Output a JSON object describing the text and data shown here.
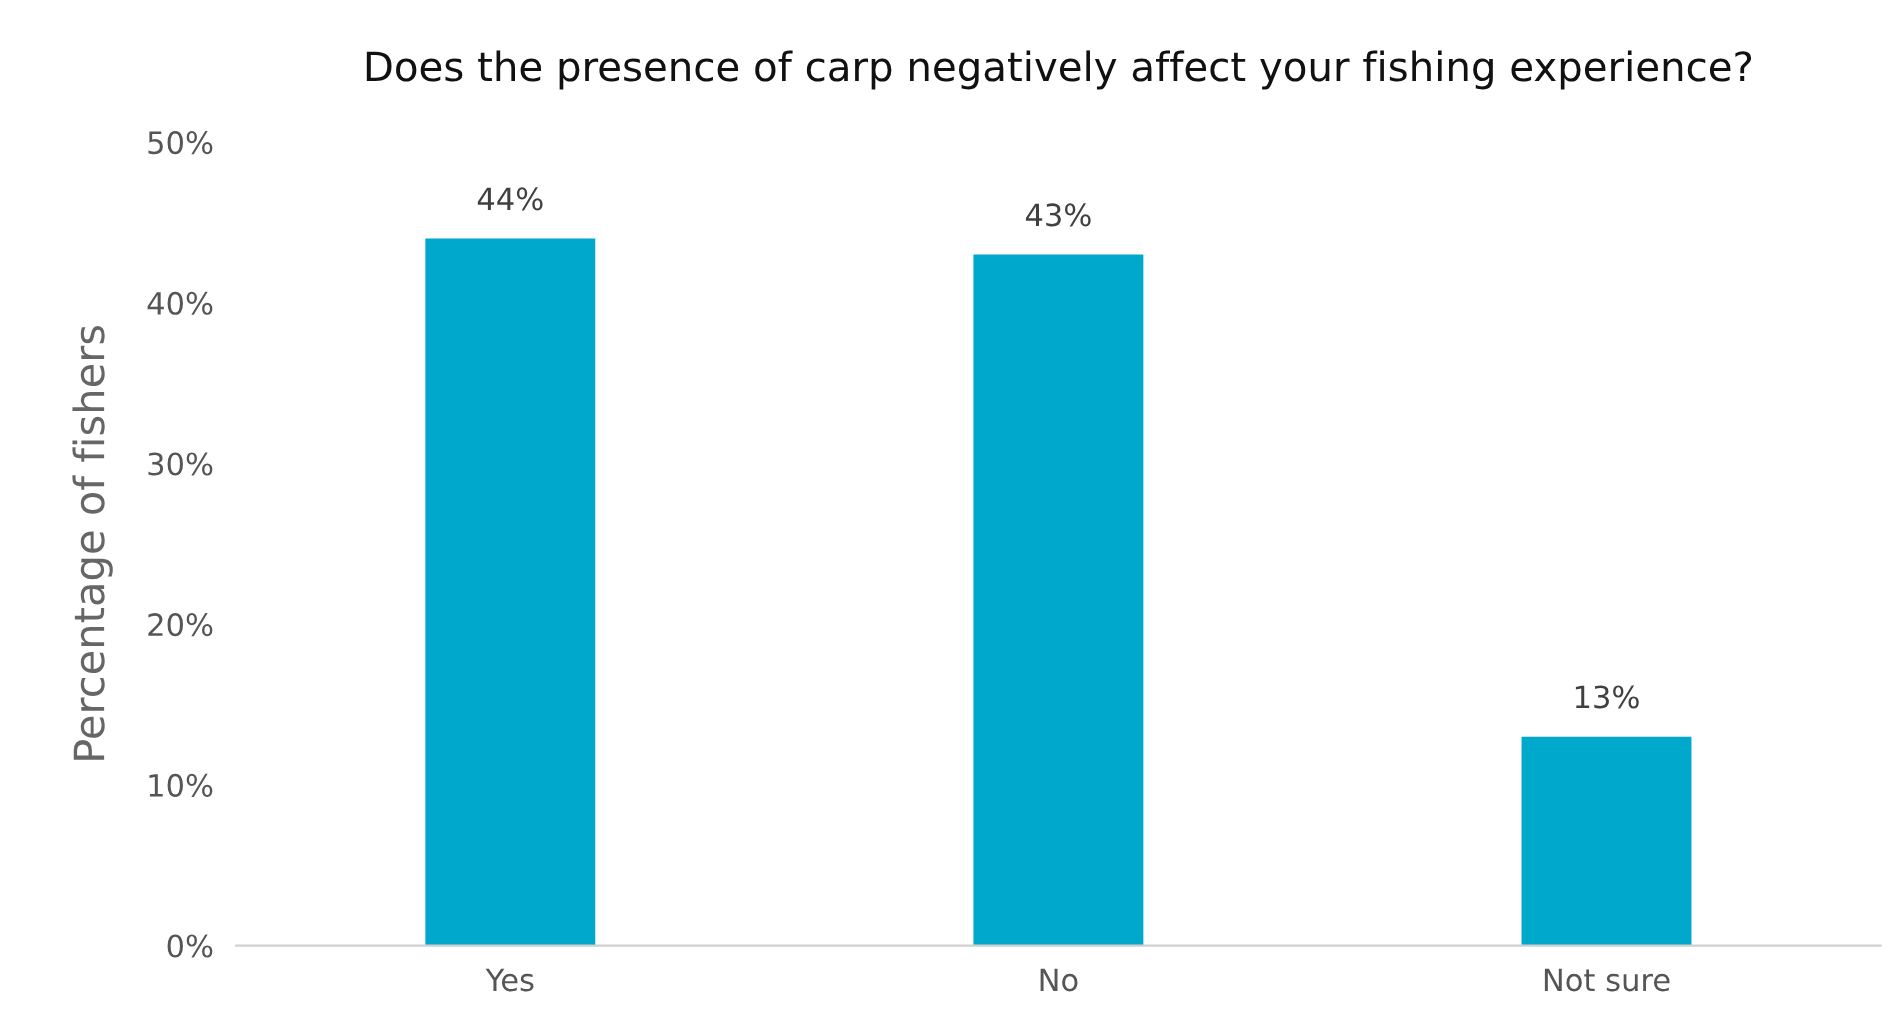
{
  "chart_data": {
    "type": "bar",
    "title": "Does the presence of carp negatively affect your fishing experience?",
    "ylabel": "Percentage of fishers",
    "categories": [
      "Yes",
      "No",
      "Not sure"
    ],
    "values": [
      44,
      43,
      13
    ],
    "value_labels": [
      "44%",
      "43%",
      "13%"
    ],
    "color": "#00a8cc",
    "ylim": [
      0,
      50
    ],
    "yticks": [
      {
        "value": 0,
        "label": "0%"
      },
      {
        "value": 10,
        "label": "10%"
      },
      {
        "value": 20,
        "label": "20%"
      },
      {
        "value": 30,
        "label": "30%"
      },
      {
        "value": 40,
        "label": "40%"
      },
      {
        "value": 50,
        "label": "50%"
      }
    ],
    "grid": false,
    "legend": false
  }
}
